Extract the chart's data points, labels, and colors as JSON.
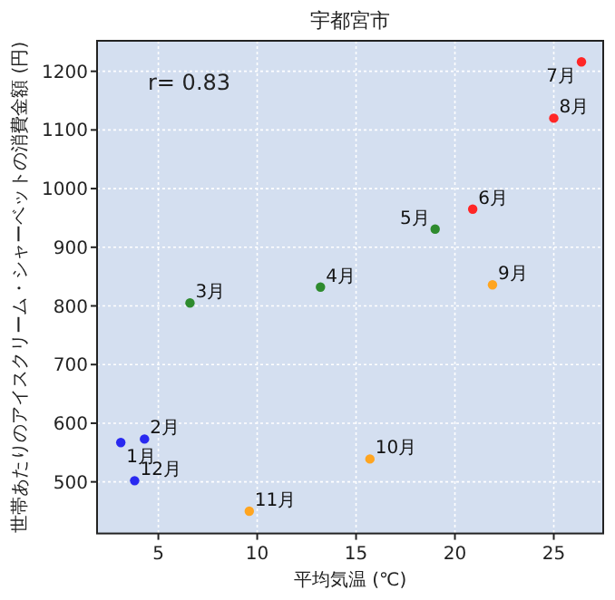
{
  "chart_data": {
    "type": "scatter",
    "title": "宇都宮市",
    "xlabel": "平均気温 (℃)",
    "ylabel": "世帯あたりのアイスクリーム・シャーベットの消費金額 (円)",
    "x": [
      3.1,
      4.3,
      6.6,
      13.2,
      19.0,
      20.9,
      26.4,
      25.0,
      21.9,
      15.7,
      9.6,
      3.8
    ],
    "values": [
      567,
      573,
      805,
      832,
      931,
      965,
      1216,
      1120,
      836,
      539,
      450,
      502
    ],
    "colors": [
      "#2929f0",
      "#2929f0",
      "#2e8b2e",
      "#2e8b2e",
      "#2e8b2e",
      "#ff2626",
      "#ff2626",
      "#ff2626",
      "#ffa520",
      "#ffa520",
      "#ffa520",
      "#2929f0"
    ],
    "annotations": [
      "r= 0.83",
      {
        "text": "1月",
        "x": 3.1,
        "y": 567
      },
      {
        "text": "2月",
        "x": 4.3,
        "y": 573
      },
      {
        "text": "3月",
        "x": 6.6,
        "y": 805
      },
      {
        "text": "4月",
        "x": 13.2,
        "y": 832
      },
      {
        "text": "5月",
        "x": 19.0,
        "y": 931
      },
      {
        "text": "6月",
        "x": 20.9,
        "y": 965
      },
      {
        "text": "7月",
        "x": 26.4,
        "y": 1216
      },
      {
        "text": "8月",
        "x": 25.0,
        "y": 1120
      },
      {
        "text": "9月",
        "x": 21.9,
        "y": 836
      },
      {
        "text": "10月",
        "x": 15.7,
        "y": 539
      },
      {
        "text": "11月",
        "x": 9.6,
        "y": 450
      },
      {
        "text": "12月",
        "x": 3.8,
        "y": 502
      }
    ],
    "xlim": [
      1.9,
      27.5
    ],
    "ylim": [
      412,
      1252
    ],
    "xticks": [
      5,
      10,
      15,
      20,
      25
    ],
    "yticks": [
      500,
      600,
      700,
      800,
      900,
      1000,
      1100,
      1200
    ],
    "grid": true,
    "marker": "circle"
  }
}
